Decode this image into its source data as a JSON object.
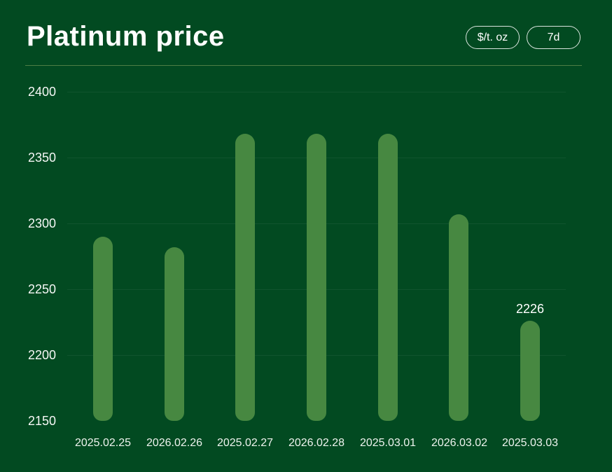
{
  "header": {
    "title": "Platinum price",
    "unit_button": "$/t. oz",
    "range_button": "7d"
  },
  "chart_data": {
    "type": "bar",
    "title": "Platinum price",
    "categories": [
      "2025.02.25",
      "2026.02.26",
      "2025.02.27",
      "2026.02.28",
      "2025.03.01",
      "2026.03.02",
      "2025.03.03"
    ],
    "values": [
      2290,
      2282,
      2368,
      2368,
      2368,
      2307,
      2226
    ],
    "point_label": {
      "index": 6,
      "text": "2226"
    },
    "xlabel": "",
    "ylabel": "",
    "ylim": [
      2150,
      2400
    ],
    "yticks": [
      2400,
      2350,
      2300,
      2250,
      2200,
      2150
    ],
    "gridlines": [
      2400,
      2350,
      2300,
      2250,
      2200
    ],
    "legend": "none",
    "colors": {
      "background": "#024a21",
      "bar": "#478841",
      "grid": "rgba(255,255,255,0.06)",
      "text": "#ffffff",
      "divider": "#4e7d45"
    }
  }
}
